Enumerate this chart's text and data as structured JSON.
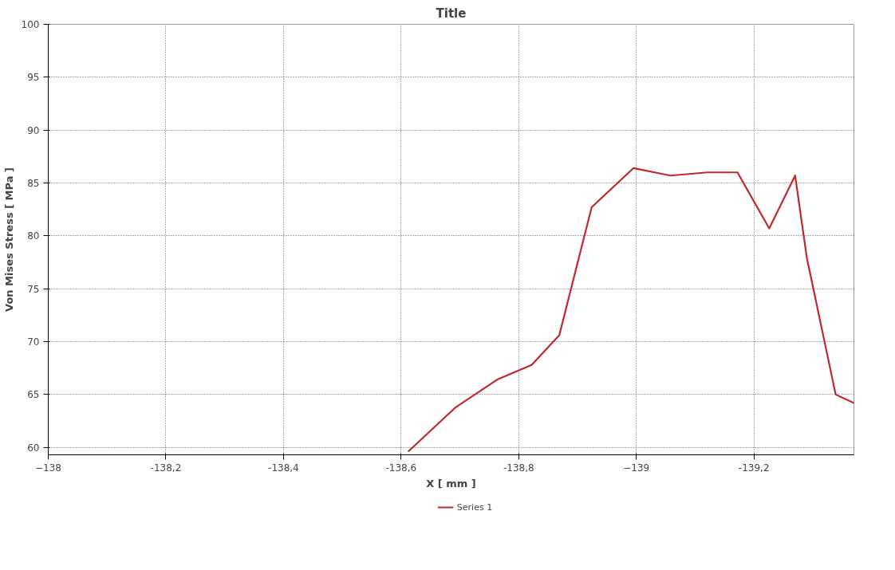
{
  "chart_data": {
    "type": "line",
    "title": "Title",
    "xlabel": "X [ mm ]",
    "ylabel": "Von Mises Stress [ MPa ]",
    "xlim": [
      -138,
      -139.37
    ],
    "ylim": [
      59.3,
      100
    ],
    "xticks": [
      -138,
      {
        "value": -138.2,
        "label": "-138,2"
      },
      {
        "value": -138.4,
        "label": "-138,4"
      },
      {
        "value": -138.6,
        "label": "-138,6"
      },
      {
        "value": -138.8,
        "label": "-138,8"
      },
      -139,
      {
        "value": -139.2,
        "label": "-139,2"
      }
    ],
    "yticks": [
      60,
      65,
      70,
      75,
      80,
      85,
      90,
      95,
      100
    ],
    "grid": true,
    "legend": "bottom",
    "line_style": "solid",
    "marker": "none",
    "series": [
      {
        "name": "Series 1",
        "color": "#c0282d",
        "x": [
          -138.612,
          -138.693,
          -138.763,
          -138.822,
          -138.869,
          -138.924,
          -138.995,
          -139.058,
          -139.121,
          -139.172,
          -139.226,
          -139.27,
          -139.29,
          -139.339,
          -139.37
        ],
        "values": [
          59.6,
          63.8,
          66.4,
          67.8,
          70.6,
          82.7,
          86.4,
          85.7,
          86.0,
          86.0,
          80.7,
          85.7,
          77.9,
          65.0,
          64.2
        ]
      }
    ]
  }
}
